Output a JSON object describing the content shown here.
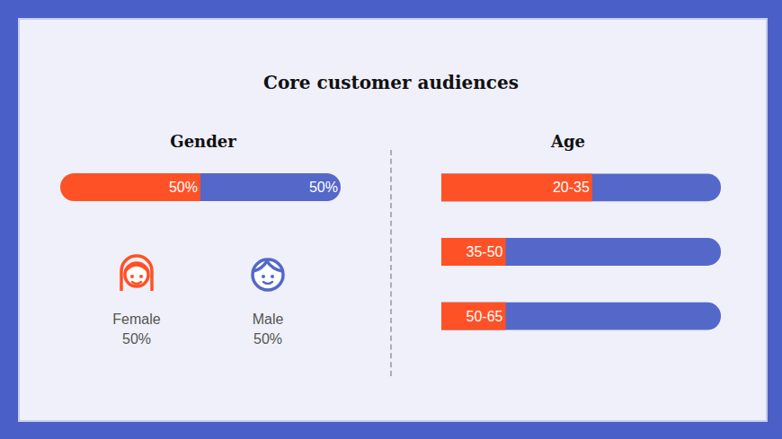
{
  "title": "Core customer audiences",
  "chart_data": [
    {
      "type": "bar",
      "title": "Gender",
      "orientation": "horizontal",
      "stacked": true,
      "categories": [
        null
      ],
      "series": [
        {
          "name": "Female",
          "color": "#ff5126",
          "values": [
            50
          ],
          "value_labels": [
            "50%"
          ]
        },
        {
          "name": "Male",
          "color": "#5468c9",
          "values": [
            50
          ],
          "value_labels": [
            "50%"
          ]
        }
      ],
      "xlim": [
        0,
        100
      ],
      "data_labels": true,
      "tick_labels": false,
      "legend": "bottom"
    },
    {
      "type": "bar",
      "title": "Age",
      "orientation": "horizontal",
      "categories": [
        "20-35",
        "35-50",
        "50-65"
      ],
      "values": [
        54,
        23,
        23
      ],
      "color": "#ff5126",
      "xlim": [
        0,
        100
      ],
      "tick_labels": false
    }
  ]
}
